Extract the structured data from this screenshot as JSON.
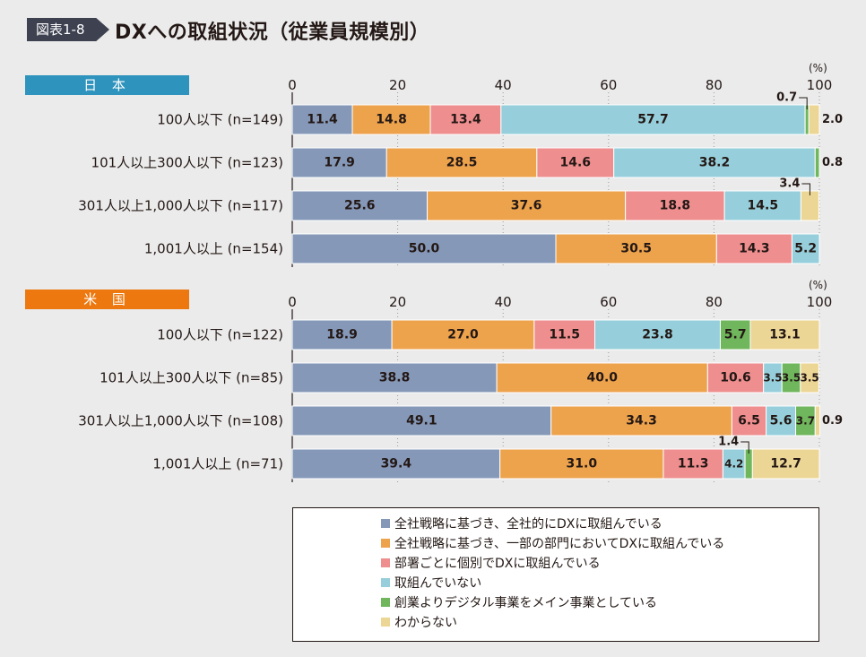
{
  "figure_label": "図表1-8",
  "title": "DXへの取組状況（従業員規模別）",
  "chart_data": {
    "type": "bar",
    "orientation": "horizontal",
    "stacked": true,
    "x_unit": "(%)",
    "xlim": [
      0,
      100
    ],
    "ticks": [
      0,
      20,
      40,
      60,
      80,
      100
    ],
    "series": [
      {
        "name": "全社戦略に基づき、全社的にDXに取組んでいる",
        "color": "#8598b8"
      },
      {
        "name": "全社戦略に基づき、一部の部門においてDXに取組んでいる",
        "color": "#eda24c"
      },
      {
        "name": "部署ごとに個別でDXに取組んでいる",
        "color": "#ef8e8f"
      },
      {
        "name": "取組んでいない",
        "color": "#96cfdb"
      },
      {
        "name": "創業よりデジタル事業をメイン事業としている",
        "color": "#6fb65c"
      },
      {
        "name": "わからない",
        "color": "#ecd696"
      }
    ],
    "panels": [
      {
        "label": "日 本",
        "rows": [
          {
            "category": "100人以下 (n=149)",
            "values": [
              11.4,
              14.8,
              13.4,
              57.7,
              0.7,
              2.0
            ]
          },
          {
            "category": "101人以上300人以下 (n=123)",
            "values": [
              17.9,
              28.5,
              14.6,
              38.2,
              0.8,
              0
            ]
          },
          {
            "category": "301人以上1,000人以下 (n=117)",
            "values": [
              25.6,
              37.6,
              18.8,
              14.5,
              0,
              3.4
            ]
          },
          {
            "category": "1,001人以上 (n=154)",
            "values": [
              50.0,
              30.5,
              14.3,
              5.2,
              0,
              0
            ]
          }
        ]
      },
      {
        "label": "米 国",
        "rows": [
          {
            "category": "100人以下 (n=122)",
            "values": [
              18.9,
              27.0,
              11.5,
              23.8,
              5.7,
              13.1
            ]
          },
          {
            "category": "101人以上300人以下 (n=85)",
            "values": [
              38.8,
              40.0,
              10.6,
              3.5,
              3.5,
              3.5
            ]
          },
          {
            "category": "301人以上1,000人以下 (n=108)",
            "values": [
              49.1,
              34.3,
              6.5,
              5.6,
              3.7,
              0.9
            ]
          },
          {
            "category": "1,001人以上 (n=71)",
            "values": [
              39.4,
              31.0,
              11.3,
              4.2,
              1.4,
              12.7
            ]
          }
        ]
      }
    ],
    "annotations": [
      {
        "panel": 0,
        "row": 0,
        "series": 4,
        "text": "0.7",
        "style": "callout"
      },
      {
        "panel": 0,
        "row": 0,
        "series": 5,
        "text": "2.0",
        "style": "outside"
      },
      {
        "panel": 0,
        "row": 1,
        "series": 4,
        "text": "0.8",
        "style": "outside"
      },
      {
        "panel": 0,
        "row": 2,
        "series": 5,
        "text": "3.4",
        "style": "callout"
      },
      {
        "panel": 1,
        "row": 2,
        "series": 5,
        "text": "0.9",
        "style": "outside"
      },
      {
        "panel": 1,
        "row": 3,
        "series": 4,
        "text": "1.4",
        "style": "callout"
      }
    ]
  }
}
